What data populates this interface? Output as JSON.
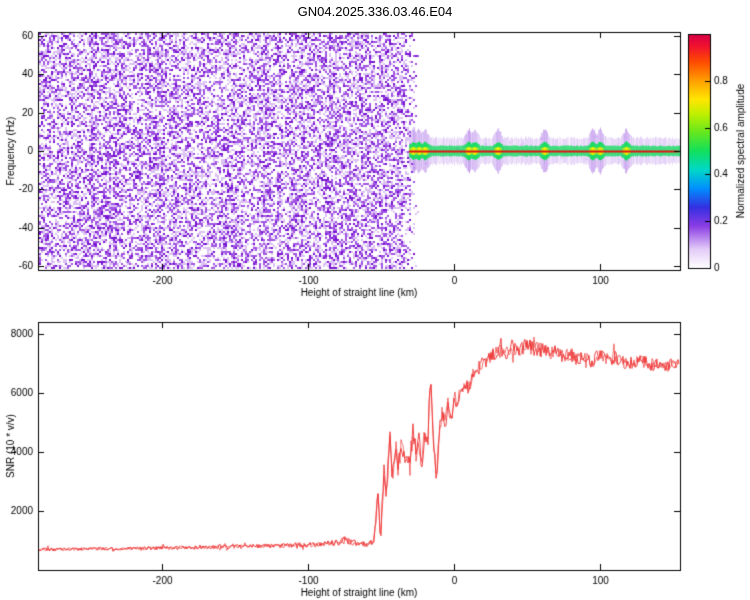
{
  "title": "GN04.2025.336.03.46.E04",
  "chart_data": [
    {
      "type": "heatmap",
      "name": "doppler-spectrogram",
      "xlabel": "Height of straight line (km)",
      "ylabel": "Frequency (Hz)",
      "xlim": [
        -285,
        155
      ],
      "ylim": [
        -62,
        62
      ],
      "xticks": [
        -200,
        -100,
        0,
        100
      ],
      "yticks": [
        -60,
        -40,
        -20,
        0,
        20,
        40,
        60
      ],
      "grid": false,
      "noise_region": {
        "x_start_km": -285,
        "x_end_km": -36,
        "fade_end_km": -25,
        "description": "broadband violet speckle noise covering all frequencies",
        "palette": {
          "light": "#dcc2f4",
          "mid": "#a055e2",
          "dark": "#7a16d2"
        },
        "fill_probability": 0.55
      },
      "signal_trace": {
        "x_start_km": -31,
        "x_end_km": 155,
        "center_frequency_hz": 0,
        "core_color": "#dd1515",
        "band_color": "#17dd60",
        "hot_color": "#f0f000",
        "glow_color": "#aa6ee6",
        "core_halfwidth_hz": 1,
        "band_halfwidth_hz": 2.4,
        "glow_halfwidth_hz": 6,
        "bright_spots_x_km": [
          -28,
          -24,
          -20,
          10,
          14,
          30,
          62,
          95,
          100,
          118
        ]
      },
      "colorbar": {
        "label": "Normalized spectral amplitude",
        "ticks": [
          0,
          0.2,
          0.4,
          0.6,
          0.8
        ],
        "min": 0,
        "max": 1,
        "gradient": [
          [
            0.0,
            "#ffffff"
          ],
          [
            0.08,
            "#e4ccf8"
          ],
          [
            0.18,
            "#8a3ce4"
          ],
          [
            0.26,
            "#3430e2"
          ],
          [
            0.34,
            "#0090ff"
          ],
          [
            0.42,
            "#00d8c8"
          ],
          [
            0.5,
            "#12e05c"
          ],
          [
            0.58,
            "#66e81e"
          ],
          [
            0.66,
            "#c2f000"
          ],
          [
            0.72,
            "#ffe600"
          ],
          [
            0.8,
            "#ffa000"
          ],
          [
            0.88,
            "#ff4c00"
          ],
          [
            0.95,
            "#f01030"
          ],
          [
            1.0,
            "#d60048"
          ]
        ]
      }
    },
    {
      "type": "line",
      "name": "snr-profile",
      "xlabel": "Height of straight line (km)",
      "ylabel": "SNR (10 * v/v)",
      "xlim": [
        -285,
        155
      ],
      "ylim": [
        0,
        8400
      ],
      "xticks": [
        -200,
        -100,
        0,
        100
      ],
      "yticks": [
        2000,
        4000,
        6000,
        8000
      ],
      "grid": false,
      "series": [
        {
          "name": "SNR",
          "color": "#ee3333",
          "points_xy_noise": [
            [
              -285,
              700,
              55
            ],
            [
              -260,
              710,
              55
            ],
            [
              -240,
              720,
              55
            ],
            [
              -220,
              730,
              55
            ],
            [
              -200,
              750,
              60
            ],
            [
              -180,
              760,
              60
            ],
            [
              -160,
              780,
              65
            ],
            [
              -140,
              800,
              70
            ],
            [
              -120,
              820,
              75
            ],
            [
              -110,
              840,
              80
            ],
            [
              -100,
              850,
              85
            ],
            [
              -90,
              880,
              90
            ],
            [
              -80,
              930,
              100
            ],
            [
              -74,
              1020,
              130
            ],
            [
              -70,
              960,
              110
            ],
            [
              -65,
              900,
              95
            ],
            [
              -60,
              870,
              90
            ],
            [
              -57,
              920,
              95
            ],
            [
              -55,
              1000,
              110
            ],
            [
              -53,
              1900,
              300
            ],
            [
              -52,
              2850,
              250
            ],
            [
              -51,
              1600,
              250
            ],
            [
              -50,
              1250,
              200
            ],
            [
              -48,
              3300,
              400
            ],
            [
              -46,
              2600,
              350
            ],
            [
              -44,
              4600,
              420
            ],
            [
              -42,
              3100,
              350
            ],
            [
              -40,
              4200,
              400
            ],
            [
              -38,
              3300,
              350
            ],
            [
              -36,
              4500,
              400
            ],
            [
              -34,
              3700,
              360
            ],
            [
              -32,
              4100,
              360
            ],
            [
              -30,
              3500,
              320
            ],
            [
              -28,
              4800,
              360
            ],
            [
              -26,
              3900,
              320
            ],
            [
              -24,
              4400,
              320
            ],
            [
              -22,
              3600,
              300
            ],
            [
              -20,
              4700,
              340
            ],
            [
              -18,
              4100,
              300
            ],
            [
              -16,
              6900,
              420
            ],
            [
              -15,
              5300,
              360
            ],
            [
              -14,
              4500,
              320
            ],
            [
              -12,
              3200,
              300
            ],
            [
              -10,
              4600,
              300
            ],
            [
              -8,
              5300,
              300
            ],
            [
              -6,
              4900,
              260
            ],
            [
              -4,
              5600,
              260
            ],
            [
              -2,
              5100,
              260
            ],
            [
              0,
              5900,
              260
            ],
            [
              2,
              5500,
              250
            ],
            [
              4,
              6100,
              250
            ],
            [
              6,
              5900,
              230
            ],
            [
              8,
              6300,
              230
            ],
            [
              10,
              6100,
              230
            ],
            [
              12,
              6500,
              230
            ],
            [
              15,
              6700,
              230
            ],
            [
              18,
              6900,
              230
            ],
            [
              20,
              7000,
              230
            ],
            [
              25,
              7200,
              240
            ],
            [
              30,
              7450,
              250
            ],
            [
              35,
              7350,
              250
            ],
            [
              40,
              7500,
              260
            ],
            [
              45,
              7450,
              260
            ],
            [
              50,
              7600,
              260
            ],
            [
              55,
              7500,
              250
            ],
            [
              60,
              7450,
              250
            ],
            [
              65,
              7350,
              240
            ],
            [
              70,
              7400,
              240
            ],
            [
              75,
              7250,
              230
            ],
            [
              80,
              7300,
              230
            ],
            [
              85,
              7150,
              230
            ],
            [
              90,
              7250,
              230
            ],
            [
              95,
              7050,
              230
            ],
            [
              100,
              7300,
              230
            ],
            [
              105,
              7150,
              230
            ],
            [
              110,
              7200,
              230
            ],
            [
              115,
              7050,
              220
            ],
            [
              120,
              6950,
              220
            ],
            [
              125,
              7100,
              220
            ],
            [
              130,
              7050,
              220
            ],
            [
              135,
              6950,
              220
            ],
            [
              140,
              7000,
              220
            ],
            [
              145,
              6850,
              220
            ],
            [
              150,
              7000,
              220
            ],
            [
              155,
              7000,
              220
            ]
          ]
        }
      ]
    }
  ]
}
